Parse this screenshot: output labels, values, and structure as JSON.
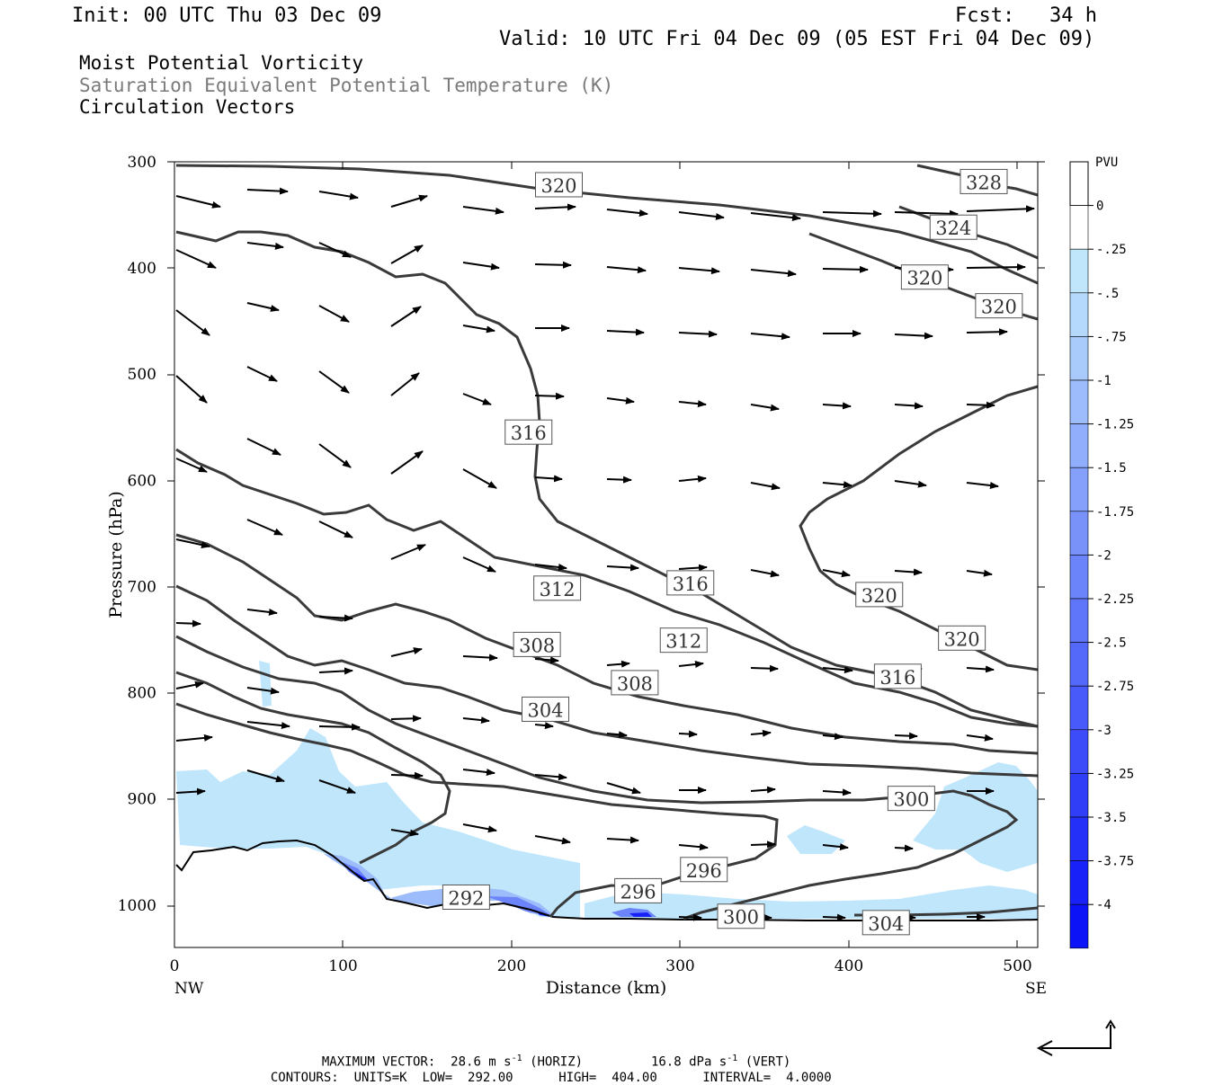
{
  "header": {
    "init": "Init: 00 UTC Thu 03 Dec 09",
    "fcst_label": "Fcst:",
    "fcst_value": "34 h",
    "valid": "Valid: 10 UTC Fri 04 Dec 09 (05 EST Fri 04 Dec 09)"
  },
  "fields": [
    {
      "label": "Moist Potential Vorticity",
      "color": "#000000"
    },
    {
      "label": "Saturation Equivalent Potential Temperature (K)",
      "color": "#7a7a7a"
    },
    {
      "label": "Circulation Vectors",
      "color": "#000000"
    }
  ],
  "footer": {
    "max_vector_label": "MAXIMUM VECTOR:",
    "horiz_val": "28.6 m s",
    "horiz_unit": "(HORIZ)",
    "vert_val": "16.8 dPa s",
    "vert_unit": "(VERT)",
    "exp": "-1",
    "contours_label": "CONTOURS:",
    "units": "UNITS=K",
    "low": "LOW=",
    "low_val": "292.00",
    "high": "HIGH=",
    "high_val": "404.00",
    "interval": "INTERVAL=",
    "interval_val": "4.0000"
  },
  "chart_data": {
    "type": "cross-section",
    "xlabel": "Distance (km)",
    "ylabel": "Pressure (hPa)",
    "xlim": [
      0,
      512
    ],
    "ylim": [
      300,
      1040
    ],
    "y_scale": "linear, inverted",
    "x_ticks": [
      0,
      100,
      200,
      300,
      400,
      500
    ],
    "y_ticks": [
      300,
      400,
      500,
      600,
      700,
      800,
      900,
      1000
    ],
    "x_endpoints": {
      "left": "NW",
      "right": "SE"
    },
    "colorbar": {
      "unit": "PVU",
      "labels": [
        "0",
        "-.25",
        "-.5",
        "-.75",
        "-1",
        "-1.25",
        "-1.5",
        "-1.75",
        "-2",
        "-2.25",
        "-2.5",
        "-2.75",
        "-3",
        "-3.25",
        "-3.5",
        "-3.75",
        "-4"
      ],
      "colors": [
        "#ffffff",
        "#c0e6fc",
        "#b4d9fc",
        "#a9cbfc",
        "#9cbcfb",
        "#90aefb",
        "#84a0fb",
        "#7892fa",
        "#6c84fa",
        "#6076fa",
        "#5468f9",
        "#485af9",
        "#3c4cf9",
        "#303ef8",
        "#2430f8",
        "#1822f8",
        "#0c14f7"
      ]
    },
    "contour_labels": [
      {
        "text": "320",
        "x": 228,
        "p": 322
      },
      {
        "text": "328",
        "x": 480,
        "p": 319
      },
      {
        "text": "324",
        "x": 462,
        "p": 362
      },
      {
        "text": "320",
        "x": 445,
        "p": 409
      },
      {
        "text": "320",
        "x": 489,
        "p": 436
      },
      {
        "text": "316",
        "x": 210,
        "p": 555
      },
      {
        "text": "316",
        "x": 306,
        "p": 697
      },
      {
        "text": "312",
        "x": 227,
        "p": 702
      },
      {
        "text": "320",
        "x": 418,
        "p": 708
      },
      {
        "text": "320",
        "x": 467,
        "p": 749
      },
      {
        "text": "308",
        "x": 215,
        "p": 755
      },
      {
        "text": "312",
        "x": 302,
        "p": 751
      },
      {
        "text": "308",
        "x": 273,
        "p": 791
      },
      {
        "text": "316",
        "x": 429,
        "p": 785
      },
      {
        "text": "304",
        "x": 220,
        "p": 816
      },
      {
        "text": "300",
        "x": 437,
        "p": 900
      },
      {
        "text": "296",
        "x": 314,
        "p": 967
      },
      {
        "text": "296",
        "x": 275,
        "p": 987
      },
      {
        "text": "292",
        "x": 173,
        "p": 993
      },
      {
        "text": "300",
        "x": 336,
        "p": 1011
      },
      {
        "text": "304",
        "x": 422,
        "p": 1017
      }
    ]
  }
}
